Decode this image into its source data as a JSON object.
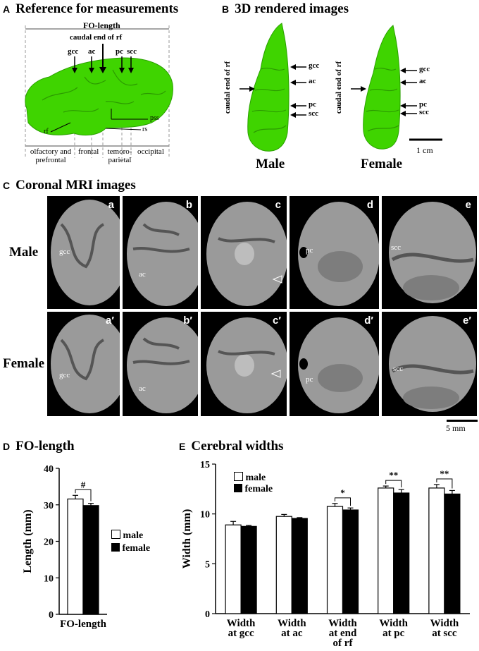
{
  "panelA": {
    "letter": "A",
    "title": "Reference for measurements",
    "fo_length": "FO-length",
    "caudal_end": "caudal end of rf",
    "markers": [
      "gcc",
      "ac",
      "pc",
      "scc"
    ],
    "labels": {
      "pss": "pss",
      "rf": "rf",
      "rs": "rs"
    },
    "regions": [
      "olfactory and prefrontal",
      "frontal",
      "temoro-parietal",
      "occipital"
    ],
    "brain_color": "#3fd400"
  },
  "panelB": {
    "letter": "B",
    "title": "3D rendered images",
    "side_label": "caudal end of rf",
    "markers": [
      "gcc",
      "ac",
      "pc",
      "scc"
    ],
    "scale": "1 cm",
    "male": "Male",
    "female": "Female"
  },
  "panelC": {
    "letter": "C",
    "title": "Coronal MRI images",
    "row_male": "Male",
    "row_female": "Female",
    "male_images": [
      {
        "idx": "a",
        "tag": "gcc"
      },
      {
        "idx": "b",
        "tag": "ac"
      },
      {
        "idx": "c",
        "tag": ""
      },
      {
        "idx": "d",
        "tag": "pc"
      },
      {
        "idx": "e",
        "tag": "scc"
      }
    ],
    "female_images": [
      {
        "idx": "a′",
        "tag": "gcc"
      },
      {
        "idx": "b′",
        "tag": "ac"
      },
      {
        "idx": "c′",
        "tag": ""
      },
      {
        "idx": "d′",
        "tag": "pc"
      },
      {
        "idx": "e′",
        "tag": "scc"
      }
    ],
    "scale": "5 mm"
  },
  "panelD": {
    "letter": "D",
    "title": "FO-length",
    "legend": [
      "male",
      "female"
    ],
    "significance": "#"
  },
  "panelE": {
    "letter": "E",
    "title": "Cerebral widths",
    "legend": [
      "male",
      "female"
    ]
  },
  "chart_data": [
    {
      "type": "bar",
      "title": "FO-length",
      "ylabel": "Length (mm)",
      "categories": [
        "FO-length"
      ],
      "ylim": [
        0,
        40
      ],
      "yticks": [
        0,
        10,
        20,
        30,
        40
      ],
      "series": [
        {
          "name": "male",
          "values": [
            31.6
          ],
          "errors": [
            1.0
          ],
          "color": "#ffffff"
        },
        {
          "name": "female",
          "values": [
            29.8
          ],
          "errors": [
            0.6
          ],
          "color": "#000000"
        }
      ],
      "significance": [
        "#"
      ]
    },
    {
      "type": "bar",
      "title": "Cerebral widths",
      "ylabel": "Width (mm)",
      "categories": [
        "Width at gcc",
        "Width at ac",
        "Width at end of rf",
        "Width at pc",
        "Width at scc"
      ],
      "ylim": [
        0,
        15
      ],
      "yticks": [
        0,
        5,
        10,
        15
      ],
      "series": [
        {
          "name": "male",
          "values": [
            8.9,
            9.75,
            10.75,
            12.6,
            12.6
          ],
          "errors": [
            0.35,
            0.2,
            0.3,
            0.2,
            0.35
          ],
          "color": "#ffffff"
        },
        {
          "name": "female",
          "values": [
            8.75,
            9.55,
            10.4,
            12.1,
            12.0
          ],
          "errors": [
            0.1,
            0.08,
            0.2,
            0.35,
            0.35
          ],
          "color": "#000000"
        }
      ],
      "significance": [
        "",
        "",
        "*",
        "**",
        "**"
      ]
    }
  ]
}
